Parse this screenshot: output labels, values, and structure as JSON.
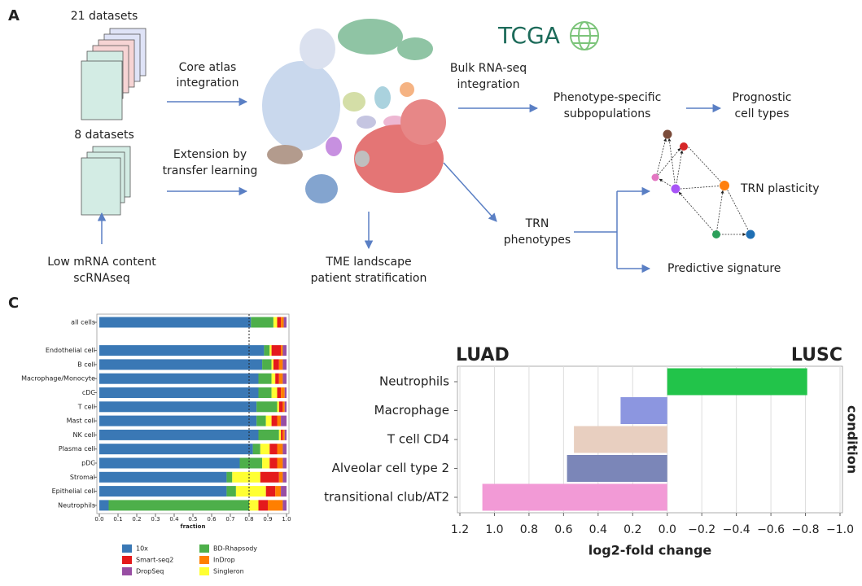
{
  "panel_a": {
    "label": "A",
    "datasets_1": "21 datasets",
    "datasets_2": "8 datasets",
    "low_mrna": [
      "Low mRNA content",
      "scRNAseq"
    ],
    "core_atlas": [
      "Core atlas",
      "integration"
    ],
    "extension": [
      "Extension by",
      "transfer learning"
    ],
    "tme": [
      "TME landscape",
      "patient stratification"
    ],
    "tcga": "TCGA",
    "bulk": [
      "Bulk RNA-seq",
      "integration"
    ],
    "phenotype_specific": [
      "Phenotype-specific",
      "subpopulations"
    ],
    "prognostic": [
      "Prognostic",
      "cell types"
    ],
    "trn_phenotypes": [
      "TRN",
      "phenotypes"
    ],
    "trn_plasticity": "TRN plasticity",
    "predictive": "Predictive signature"
  },
  "panel_c_label": "C",
  "chart_data": [
    {
      "type": "bar",
      "orientation": "horizontal",
      "stacked": true,
      "categories": [
        "all cells",
        null,
        "Endothelial cell",
        "B cell",
        "Macrophage/Monocyte",
        "cDC",
        "T cell",
        "Mast cell",
        "NK cell",
        "Plasma cell",
        "pDC",
        "Stromal",
        "Epithelial cell",
        "Neutrophils"
      ],
      "series": [
        {
          "name": "10x",
          "color": "#3a78b5",
          "values": [
            0.81,
            null,
            0.88,
            0.87,
            0.85,
            0.85,
            0.84,
            0.84,
            0.85,
            0.82,
            0.75,
            0.68,
            0.68,
            0.05
          ]
        },
        {
          "name": "BD-Rhapsody",
          "color": "#4daf4a",
          "values": [
            0.12,
            null,
            0.03,
            0.05,
            0.07,
            0.07,
            0.11,
            0.05,
            0.11,
            0.04,
            0.12,
            0.03,
            0.05,
            0.75
          ]
        },
        {
          "name": "Singleron",
          "color": "#ffff33",
          "values": [
            0.02,
            null,
            0.01,
            0.01,
            0.02,
            0.03,
            0.01,
            0.03,
            0.01,
            0.05,
            0.04,
            0.15,
            0.16,
            0.05
          ]
        },
        {
          "name": "Smart-seq2",
          "color": "#e41a1c",
          "values": [
            0.02,
            null,
            0.05,
            0.03,
            0.02,
            0.02,
            0.02,
            0.03,
            0.01,
            0.04,
            0.04,
            0.1,
            0.05,
            0.05
          ]
        },
        {
          "name": "InDrop",
          "color": "#ff7f00",
          "values": [
            0.015,
            null,
            0.01,
            0.02,
            0.02,
            0.02,
            0.01,
            0.02,
            0.01,
            0.03,
            0.03,
            0.02,
            0.03,
            0.08
          ]
        },
        {
          "name": "DropSeq",
          "color": "#984ea3",
          "values": [
            0.015,
            null,
            0.02,
            0.02,
            0.02,
            0.01,
            0.01,
            0.03,
            0.01,
            0.02,
            0.02,
            0.02,
            0.03,
            0.02
          ]
        }
      ],
      "xlim": [
        0,
        1
      ],
      "xticks": [
        {
          "value": 0,
          "label": "0.0"
        },
        0.1,
        0.2,
        0.3,
        0.4,
        0.5,
        0.6,
        0.7,
        0.8,
        0.9,
        {
          "value": 1,
          "label": "1.0"
        }
      ],
      "xlabel": "fraction",
      "vline": 0.8
    },
    {
      "type": "bar",
      "orientation": "horizontal",
      "categories": [
        "Neutrophils",
        "Macrophage",
        "T cell CD4",
        "Alveolar cell type 2",
        "transitional club/AT2"
      ],
      "values": [
        -0.81,
        0.27,
        0.54,
        0.58,
        1.07
      ],
      "colors": [
        "#22c44a",
        "#8c96e0",
        "#e8cfc0",
        "#7b86b8",
        "#f29ad6"
      ],
      "xlim": [
        1.2,
        -1.0
      ],
      "xticks": [
        1.2,
        {
          "value": 1,
          "label": "1.0"
        },
        0.8,
        0.6,
        0.4,
        0.2,
        {
          "value": 0,
          "label": "0.0"
        },
        {
          "value": -0.2,
          "label": "−0.2"
        },
        {
          "value": -0.4,
          "label": "−0.4"
        },
        {
          "value": -0.6,
          "label": "−0.6"
        },
        {
          "value": -0.8,
          "label": "−0.8"
        },
        {
          "value": -1,
          "label": "−1.0"
        }
      ],
      "xlabel": "log2-fold change",
      "ylabel": "condition",
      "left_label": "LUAD",
      "right_label": "LUSC",
      "grid": true
    }
  ]
}
